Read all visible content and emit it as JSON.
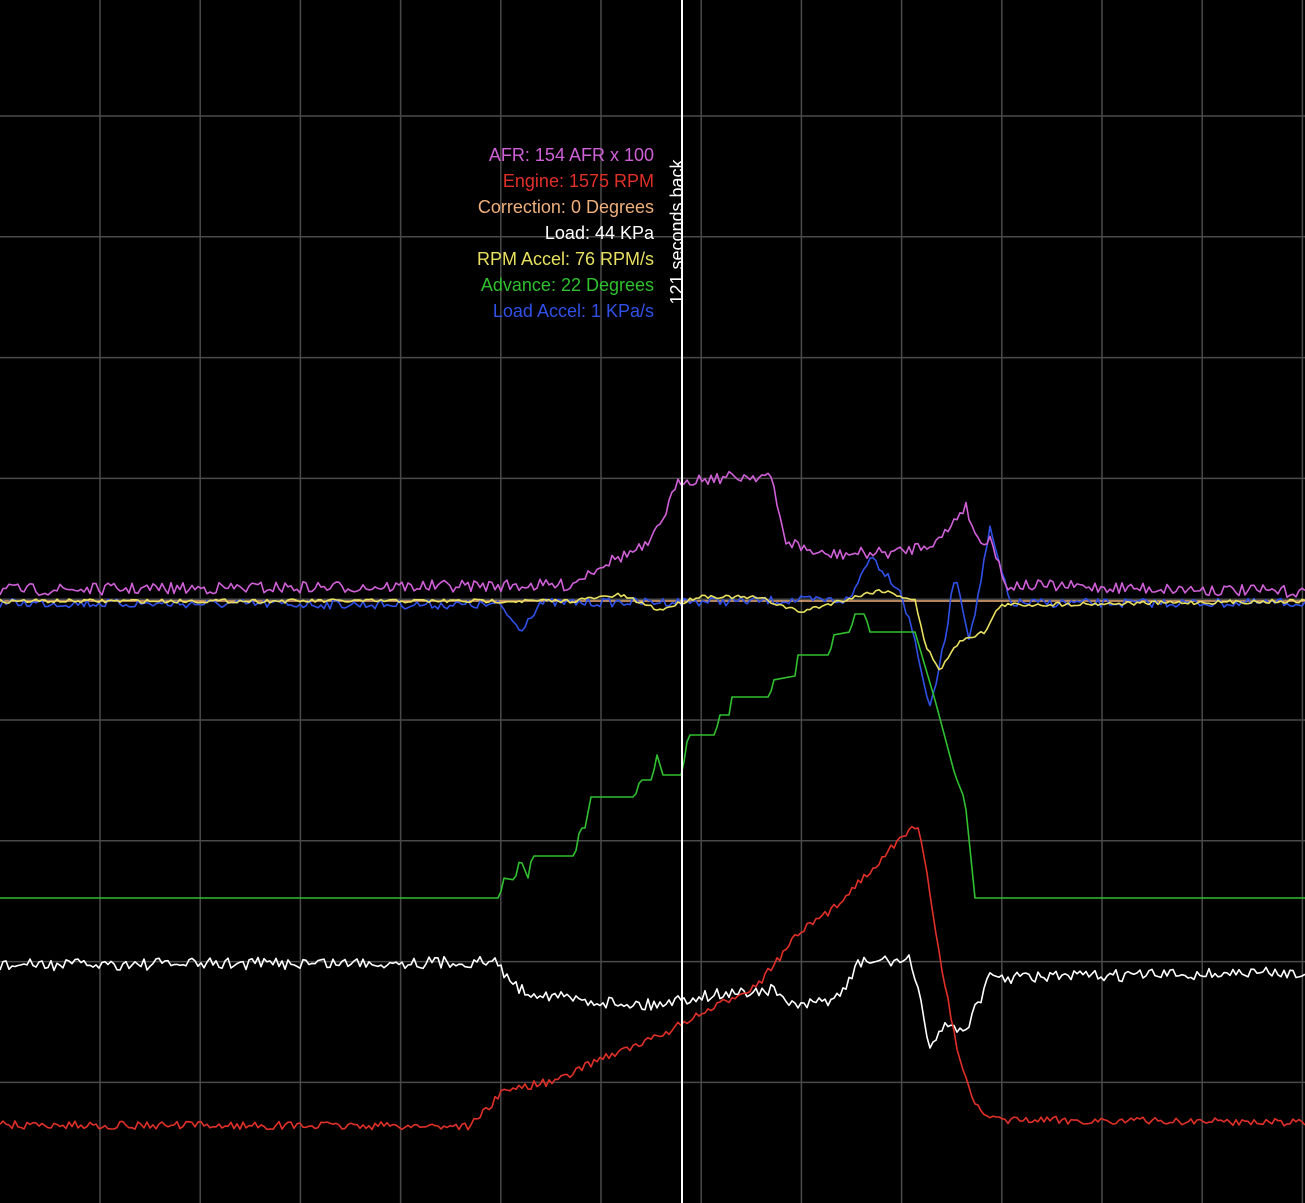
{
  "readouts": [
    {
      "text": "AFR: 154 AFR x 100",
      "color": "#d060d8"
    },
    {
      "text": "Engine: 1575 RPM",
      "color": "#e03028"
    },
    {
      "text": "Correction: 0 Degrees",
      "color": "#f0b07c"
    },
    {
      "text": "Load: 44 KPa",
      "color": "#ffffff"
    },
    {
      "text": "RPM Accel: 76 RPM/s",
      "color": "#e8e060"
    },
    {
      "text": "Advance: 22 Degrees",
      "color": "#30c030"
    },
    {
      "text": "Load Accel: 1 KPa/s",
      "color": "#3050e8"
    }
  ],
  "cursor_label": "121 seconds back"
}
